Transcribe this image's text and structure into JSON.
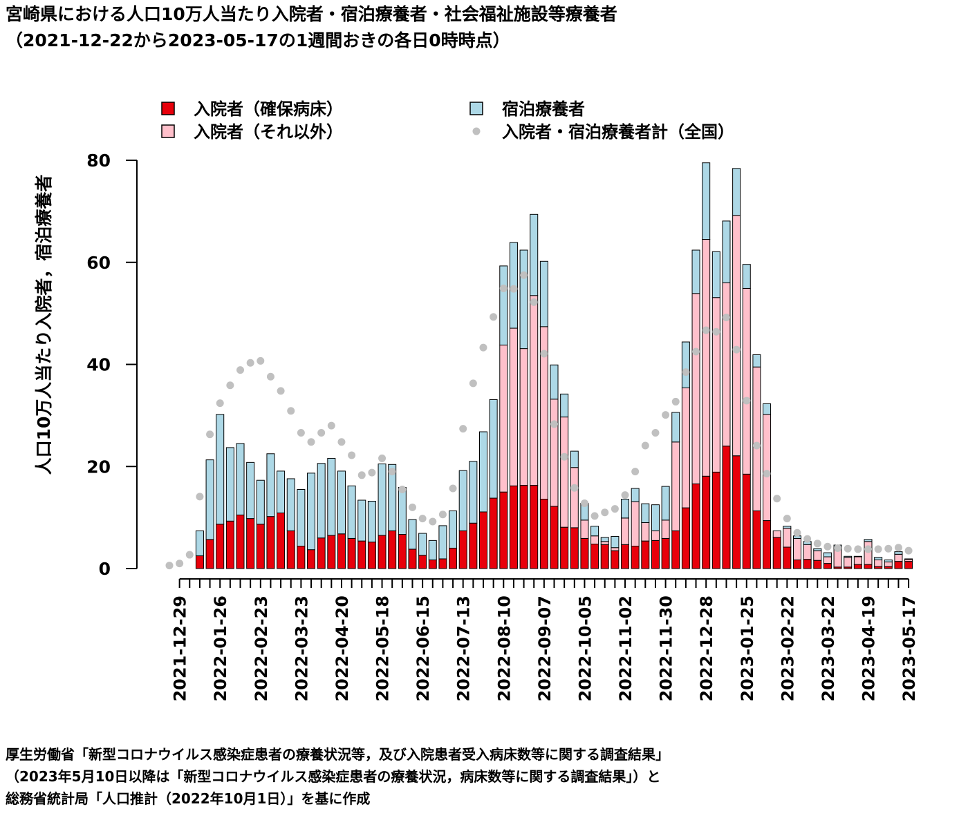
{
  "title": {
    "line1": "宮崎県における人口10万人当たり入院者・宿泊療養者・社会福祉施設等療養者",
    "line2": "（2021-12-22から2023-05-17の1週間おきの各日0時時点）"
  },
  "footer": {
    "line1": "厚生労働省「新型コロナウイルス感染症患者の療養状況等，及び入院患者受入病床数等に関する調査結果」",
    "line2": "（2023年5月10日以降は「新型コロナウイルス感染症患者の療養状況，病床数等に関する調査結果」）と",
    "line3": "総務省統計局「人口推計（2022年10月1日）」を基に作成"
  },
  "colors": {
    "secured_beds": "#e8000b",
    "other_inpatients": "#ffc0cb",
    "hotel": "#add8e6",
    "national_total": "#c0c0c0"
  },
  "chart_data": {
    "type": "bar",
    "stacked": true,
    "ylabel": "人口10万人当たり入院者，宿泊療養者",
    "ylim": [
      0,
      80
    ],
    "yticks": [
      0,
      20,
      40,
      60,
      80
    ],
    "xtick_labels": [
      "2021-12-29",
      "2022-01-26",
      "2022-02-23",
      "2022-03-23",
      "2022-04-20",
      "2022-05-18",
      "2022-06-15",
      "2022-07-13",
      "2022-08-10",
      "2022-09-07",
      "2022-10-05",
      "2022-11-02",
      "2022-11-30",
      "2022-12-28",
      "2023-01-25",
      "2023-02-22",
      "2023-03-22",
      "2023-04-19",
      "2023-05-17"
    ],
    "legend": [
      {
        "name": "入院者（確保病床）",
        "kind": "box",
        "color": "#e8000b"
      },
      {
        "name": "宿泊療養者",
        "kind": "box",
        "color": "#add8e6"
      },
      {
        "name": "入院者（それ以外）",
        "kind": "box",
        "color": "#ffc0cb"
      },
      {
        "name": "入院者・宿泊療養者計（全国）",
        "kind": "dot",
        "color": "#c0c0c0"
      }
    ],
    "legend_position": "top",
    "x": [
      "2021-12-22",
      "2021-12-29",
      "2022-01-05",
      "2022-01-12",
      "2022-01-19",
      "2022-01-26",
      "2022-02-02",
      "2022-02-09",
      "2022-02-16",
      "2022-02-23",
      "2022-03-02",
      "2022-03-09",
      "2022-03-16",
      "2022-03-23",
      "2022-03-30",
      "2022-04-06",
      "2022-04-13",
      "2022-04-20",
      "2022-04-27",
      "2022-05-04",
      "2022-05-11",
      "2022-05-18",
      "2022-05-25",
      "2022-06-01",
      "2022-06-08",
      "2022-06-15",
      "2022-06-22",
      "2022-06-29",
      "2022-07-06",
      "2022-07-13",
      "2022-07-20",
      "2022-07-27",
      "2022-08-03",
      "2022-08-10",
      "2022-08-17",
      "2022-08-24",
      "2022-08-31",
      "2022-09-07",
      "2022-09-14",
      "2022-09-21",
      "2022-09-28",
      "2022-10-05",
      "2022-10-12",
      "2022-10-19",
      "2022-10-26",
      "2022-11-02",
      "2022-11-09",
      "2022-11-16",
      "2022-11-23",
      "2022-11-30",
      "2022-12-07",
      "2022-12-14",
      "2022-12-21",
      "2022-12-28",
      "2023-01-04",
      "2023-01-11",
      "2023-01-18",
      "2023-01-25",
      "2023-02-01",
      "2023-02-08",
      "2023-02-15",
      "2023-02-22",
      "2023-03-01",
      "2023-03-08",
      "2023-03-15",
      "2023-03-22",
      "2023-03-29",
      "2023-04-05",
      "2023-04-12",
      "2023-04-19",
      "2023-04-26",
      "2023-05-03",
      "2023-05-10",
      "2023-05-17"
    ],
    "series": [
      {
        "name": "入院者（確保病床）",
        "values": [
          0,
          0,
          0,
          2.5,
          5.7,
          8.7,
          9.3,
          10.5,
          9.8,
          8.7,
          10.2,
          10.9,
          7.4,
          4.4,
          3.7,
          6.0,
          6.5,
          6.8,
          5.9,
          5.4,
          5.2,
          6.5,
          7.4,
          6.7,
          3.8,
          2.6,
          1.7,
          1.9,
          4.0,
          7.4,
          8.9,
          11.1,
          13.8,
          15.0,
          16.2,
          16.3,
          16.3,
          13.6,
          12.2,
          8.1,
          8.0,
          5.9,
          4.8,
          4.7,
          3.5,
          4.7,
          4.4,
          5.4,
          5.5,
          5.9,
          7.4,
          11.9,
          16.6,
          18.1,
          18.9,
          24.0,
          22.1,
          18.5,
          11.3,
          9.4,
          6.1,
          4.2,
          1.7,
          1.8,
          1.6,
          1.0,
          0.3,
          0.3,
          0.8,
          0.8,
          0.4,
          0.4,
          1.4,
          1.4
        ]
      },
      {
        "name": "入院者（それ以外）",
        "values": [
          0,
          0,
          0,
          0,
          0,
          0,
          0,
          0,
          0,
          0,
          0,
          0,
          0,
          0,
          0,
          0,
          0,
          0,
          0,
          0,
          0,
          0,
          0,
          0,
          0,
          0,
          0,
          0,
          0,
          0,
          0,
          0,
          0,
          28.8,
          30.9,
          26.8,
          37.2,
          33.8,
          21.0,
          21.6,
          11.8,
          3.6,
          1.6,
          0.6,
          0.6,
          5.2,
          8.7,
          3.6,
          1.9,
          3.6,
          17.4,
          23.5,
          37.3,
          46.4,
          34.2,
          32.0,
          47.1,
          36.4,
          28.2,
          20.8,
          1.3,
          3.7,
          4.2,
          2.9,
          1.9,
          1.3,
          3.7,
          1.9,
          1.5,
          4.5,
          1.3,
          0.9,
          1.4,
          0.4
        ]
      },
      {
        "name": "宿泊療養者",
        "values": [
          0,
          0,
          0,
          4.9,
          15.6,
          21.5,
          14.4,
          14.0,
          11.0,
          8.6,
          12.3,
          8.2,
          10.2,
          11.1,
          15.0,
          14.6,
          15.1,
          12.3,
          10.3,
          8.0,
          8.0,
          14.0,
          13.0,
          9.2,
          5.8,
          4.3,
          3.8,
          6.5,
          7.3,
          11.8,
          12.1,
          15.7,
          19.3,
          15.5,
          16.8,
          19.3,
          15.9,
          12.8,
          6.7,
          4.5,
          3.2,
          3.3,
          1.9,
          0.8,
          2.2,
          3.7,
          2.6,
          3.7,
          5.1,
          6.6,
          5.8,
          9.0,
          8.5,
          15.0,
          9.0,
          12.1,
          9.2,
          4.7,
          2.4,
          2.1,
          0,
          0.4,
          0.5,
          0.6,
          0.4,
          0.8,
          0.6,
          0.2,
          0.1,
          0.4,
          0.5,
          0.4,
          0.5,
          0.1
        ]
      },
      {
        "name": "入院者・宿泊療養者計（全国）",
        "kind": "dot",
        "values": [
          0.6,
          1.0,
          2.7,
          14.1,
          26.3,
          32.4,
          35.9,
          38.9,
          40.3,
          40.7,
          37.6,
          34.8,
          30.9,
          26.6,
          24.8,
          26.6,
          28.0,
          24.8,
          22.2,
          18.3,
          18.8,
          21.6,
          19.0,
          15.5,
          12.0,
          9.8,
          9.2,
          10.6,
          15.7,
          27.4,
          36.3,
          43.3,
          49.3,
          54.9,
          54.8,
          57.5,
          52.2,
          42.1,
          28.3,
          21.9,
          15.8,
          12.8,
          10.3,
          11.0,
          11.7,
          14.4,
          19.0,
          24.1,
          26.6,
          30.1,
          32.7,
          38.5,
          42.5,
          46.7,
          46.4,
          49.2,
          42.9,
          32.9,
          24.1,
          18.6,
          13.7,
          9.8,
          7.0,
          5.8,
          4.9,
          4.3,
          4.0,
          3.9,
          3.8,
          3.8,
          3.8,
          3.9,
          4.1,
          3.5
        ]
      }
    ]
  }
}
